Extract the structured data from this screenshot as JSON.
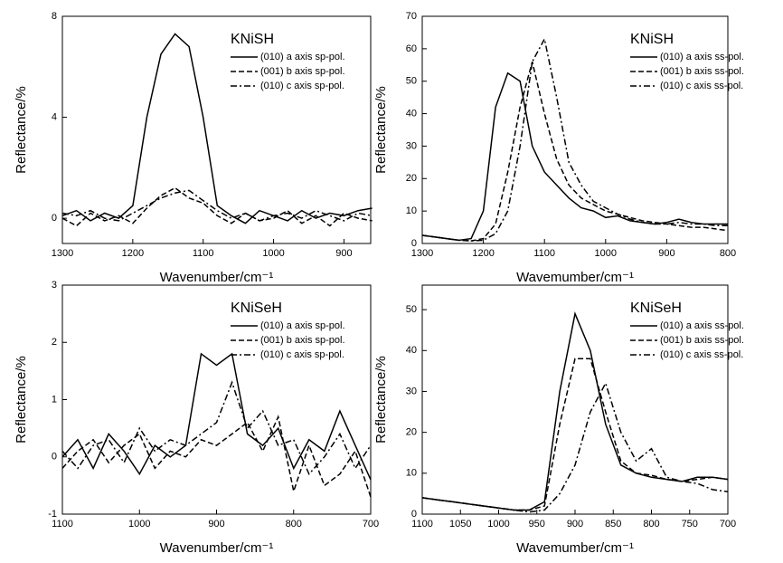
{
  "chart_data": [
    {
      "type": "line",
      "annotation": "KNiSH",
      "x_label": "Wavenumber/cm⁻¹",
      "y_label": "Reflectance/%",
      "xlim": [
        1300,
        862
      ],
      "ylim": [
        -1,
        8
      ],
      "xticks": [
        1300,
        1200,
        1100,
        1000,
        900
      ],
      "yticks": [
        0,
        4,
        8
      ],
      "legend": "upper right",
      "x": [
        1300,
        1280,
        1260,
        1240,
        1220,
        1200,
        1180,
        1160,
        1140,
        1120,
        1100,
        1080,
        1060,
        1040,
        1020,
        1000,
        980,
        960,
        940,
        920,
        900,
        880,
        860
      ],
      "series": [
        {
          "name": "(010) a axis sp-pol.",
          "color": "#000000",
          "dash": "solid",
          "values": [
            0.1,
            0.3,
            -0.1,
            0.2,
            0.0,
            0.5,
            4.0,
            6.5,
            7.3,
            6.8,
            4.0,
            0.5,
            0.1,
            -0.2,
            0.3,
            0.1,
            -0.1,
            0.3,
            0.0,
            0.2,
            0.1,
            0.3,
            0.4
          ]
        },
        {
          "name": "(001) b axis sp-pol.",
          "color": "#000000",
          "dash": "dashed",
          "values": [
            0.0,
            -0.3,
            0.2,
            -0.1,
            0.1,
            -0.2,
            0.4,
            0.9,
            1.2,
            0.8,
            0.6,
            0.1,
            -0.2,
            0.2,
            -0.1,
            0.0,
            0.3,
            -0.2,
            0.1,
            -0.3,
            0.2,
            0.0,
            -0.1
          ]
        },
        {
          "name": "(010) c axis sp-pol.",
          "color": "#000000",
          "dash": "dashdot",
          "values": [
            0.2,
            0.1,
            0.3,
            0.0,
            -0.1,
            0.2,
            0.5,
            0.8,
            1.0,
            1.1,
            0.7,
            0.3,
            0.0,
            0.2,
            -0.1,
            0.1,
            0.2,
            0.0,
            0.3,
            0.1,
            -0.1,
            0.2,
            0.1
          ]
        }
      ]
    },
    {
      "type": "line",
      "annotation": "KNiSH",
      "x_label": "Wavemumber/cm⁻¹",
      "y_label": "Reflectance/%",
      "xlim": [
        1300,
        800
      ],
      "ylim": [
        0,
        70
      ],
      "xticks": [
        1300,
        1200,
        1100,
        1000,
        900,
        800
      ],
      "yticks": [
        0,
        10,
        20,
        30,
        40,
        50,
        60,
        70
      ],
      "legend": "upper right",
      "x": [
        1300,
        1280,
        1260,
        1240,
        1220,
        1200,
        1180,
        1160,
        1140,
        1120,
        1100,
        1080,
        1060,
        1040,
        1020,
        1000,
        980,
        960,
        940,
        920,
        900,
        880,
        860,
        840,
        820,
        800
      ],
      "series": [
        {
          "name": "(010) a axis ss-pol.",
          "color": "#000000",
          "dash": "solid",
          "values": [
            2.5,
            2,
            1.5,
            1,
            1.5,
            10,
            42,
            52.5,
            50,
            30,
            22,
            18,
            14,
            11,
            10,
            8,
            8.5,
            7,
            6.5,
            6,
            6.5,
            7.5,
            6.5,
            6,
            6,
            6
          ]
        },
        {
          "name": "(001) b axis ss-pol.",
          "color": "#000000",
          "dash": "dashed",
          "values": [
            2.5,
            2,
            1.5,
            1,
            0.8,
            1.5,
            6,
            22,
            42,
            56,
            40,
            26,
            18,
            14,
            12,
            10,
            9,
            8,
            7,
            6.5,
            6,
            5.5,
            5,
            5,
            4.5,
            4
          ]
        },
        {
          "name": "(010) c axis ss-pol.",
          "color": "#000000",
          "dash": "dashdot",
          "values": [
            2.5,
            2,
            1.5,
            1,
            0.8,
            1,
            3,
            10,
            30,
            56,
            63,
            45,
            25,
            18,
            13,
            11,
            9,
            7.5,
            6.5,
            6,
            6,
            6.5,
            6,
            6,
            5.5,
            5.5
          ]
        }
      ]
    },
    {
      "type": "line",
      "annotation": "KNiSeH",
      "x_label": "Wavenumber/cm⁻¹",
      "y_label": "Reflectance/%",
      "xlim": [
        1100,
        700
      ],
      "ylim": [
        -1,
        3
      ],
      "xticks": [
        1100,
        1000,
        900,
        800,
        700
      ],
      "yticks": [
        -1,
        0,
        1,
        2,
        3
      ],
      "legend": "upper right",
      "x": [
        1100,
        1080,
        1060,
        1040,
        1020,
        1000,
        980,
        960,
        940,
        920,
        900,
        880,
        860,
        840,
        820,
        800,
        780,
        760,
        740,
        720,
        700
      ],
      "series": [
        {
          "name": "(010) a axis sp-pol.",
          "color": "#000000",
          "dash": "solid",
          "values": [
            0.0,
            0.3,
            -0.2,
            0.4,
            0.1,
            -0.3,
            0.2,
            0.0,
            0.2,
            1.8,
            1.6,
            1.8,
            0.4,
            0.2,
            0.5,
            -0.2,
            0.3,
            0.1,
            0.8,
            0.2,
            -0.4
          ]
        },
        {
          "name": "(001) b axis sp-pol.",
          "color": "#000000",
          "dash": "dashed",
          "values": [
            -0.2,
            0.1,
            0.3,
            -0.1,
            0.2,
            0.4,
            -0.2,
            0.1,
            0.0,
            0.3,
            0.2,
            0.4,
            0.6,
            0.1,
            0.7,
            -0.6,
            0.2,
            -0.5,
            -0.3,
            0.1,
            -0.7
          ]
        },
        {
          "name": "(010) c axis sp-pol.",
          "color": "#000000",
          "dash": "dashdot",
          "values": [
            0.1,
            -0.2,
            0.2,
            0.3,
            -0.1,
            0.5,
            0.1,
            0.3,
            0.2,
            0.4,
            0.6,
            1.3,
            0.5,
            0.8,
            0.2,
            0.3,
            -0.3,
            0.0,
            0.4,
            -0.2,
            0.2
          ]
        }
      ]
    },
    {
      "type": "line",
      "annotation": "KNiSeH",
      "x_label": "Wavemumber/cm⁻¹",
      "y_label": "Reflectance/%",
      "xlim": [
        1100,
        700
      ],
      "ylim": [
        0,
        56
      ],
      "xticks": [
        1100,
        1050,
        1000,
        950,
        900,
        850,
        800,
        750,
        700
      ],
      "yticks": [
        0,
        10,
        20,
        30,
        40,
        50
      ],
      "legend": "upper right",
      "x": [
        1100,
        1080,
        1060,
        1040,
        1020,
        1000,
        980,
        960,
        940,
        920,
        900,
        880,
        860,
        840,
        820,
        800,
        780,
        760,
        740,
        720,
        700
      ],
      "series": [
        {
          "name": "(010) a axis ss-pol.",
          "color": "#000000",
          "dash": "solid",
          "values": [
            4,
            3.5,
            3,
            2.5,
            2,
            1.5,
            1,
            1,
            3,
            30,
            49,
            40,
            22,
            12,
            10,
            9,
            8.5,
            8,
            9,
            9,
            8.5
          ]
        },
        {
          "name": "(001) b axis ss-pol.",
          "color": "#000000",
          "dash": "dashed",
          "values": [
            4,
            3.5,
            3,
            2.5,
            2,
            1.5,
            1,
            1,
            2,
            22,
            38,
            38,
            25,
            13,
            10,
            9.5,
            8.5,
            8,
            8.5,
            9,
            8.5
          ]
        },
        {
          "name": "(010) c axis ss-pol.",
          "color": "#000000",
          "dash": "dashdot",
          "values": [
            4,
            3.5,
            3,
            2.5,
            2,
            1.5,
            1,
            0.5,
            1,
            5,
            12,
            25,
            32,
            20,
            13,
            16,
            9,
            8,
            7.5,
            6,
            5.5
          ]
        }
      ]
    }
  ]
}
